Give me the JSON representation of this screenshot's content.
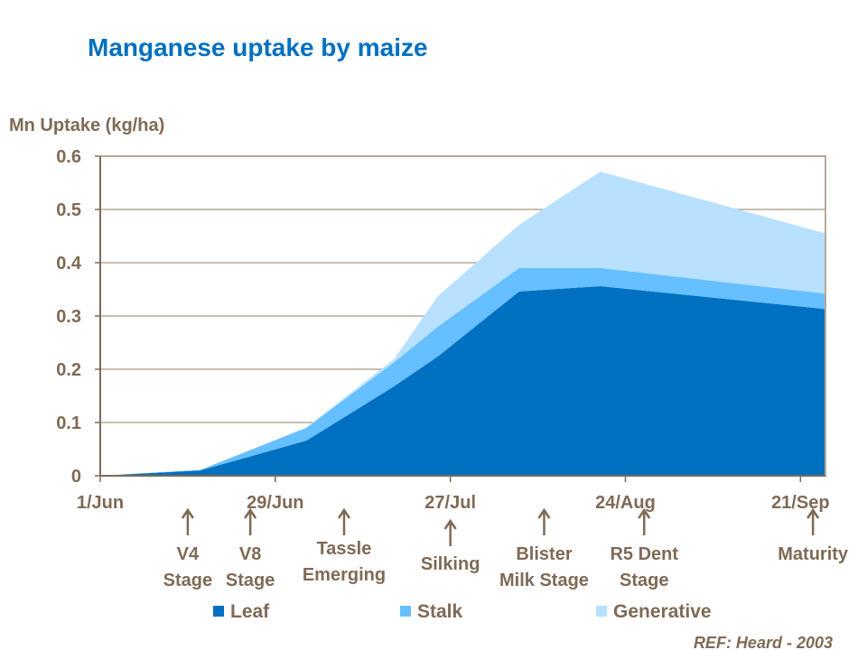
{
  "chart_data": {
    "type": "area",
    "stacked": true,
    "title": "Manganese uptake by maize",
    "ylabel": "Mn Uptake (kg/ha)",
    "xlabel": "",
    "ylim": [
      0,
      0.6
    ],
    "yticks": [
      "0",
      "0.1",
      "0.2",
      "0.3",
      "0.4",
      "0.5",
      "0.6"
    ],
    "xlim": [
      "2003-06-01",
      "2003-09-25"
    ],
    "xticks": [
      {
        "date": "2003-06-01",
        "label": "1/Jun"
      },
      {
        "date": "2003-06-29",
        "label": "29/Jun"
      },
      {
        "date": "2003-07-27",
        "label": "27/Jul"
      },
      {
        "date": "2003-08-24",
        "label": "24/Aug"
      },
      {
        "date": "2003-09-21",
        "label": "21/Sep"
      }
    ],
    "grid": "horizontal",
    "x": [
      "2003-06-01",
      "2003-06-17",
      "2003-07-04",
      "2003-07-18",
      "2003-07-25",
      "2003-08-07",
      "2003-08-20",
      "2003-09-25"
    ],
    "series": [
      {
        "name": "Leaf",
        "color": "#0070C0",
        "values": [
          0,
          0.01,
          0.066,
          0.168,
          0.224,
          0.346,
          0.356,
          0.313
        ]
      },
      {
        "name": "Stalk",
        "color": "#66BFFF",
        "values": [
          0,
          0.001,
          0.024,
          0.045,
          0.056,
          0.044,
          0.034,
          0.029
        ]
      },
      {
        "name": "Generative",
        "color": "#B8E0FF",
        "values": [
          0,
          0.0,
          0.001,
          0.006,
          0.057,
          0.081,
          0.181,
          0.113
        ]
      }
    ],
    "legend_placement": "bottom",
    "annotations": [
      {
        "date": "2003-06-15",
        "lines": [
          "V4",
          "Stage"
        ]
      },
      {
        "date": "2003-06-25",
        "lines": [
          "V8",
          "Stage"
        ]
      },
      {
        "date": "2003-07-10",
        "lines": [
          "Tassle",
          "Emerging"
        ]
      },
      {
        "date": "2003-07-27",
        "lines": [
          "Silking"
        ]
      },
      {
        "date": "2003-08-11",
        "lines": [
          "Blister",
          "Milk Stage"
        ]
      },
      {
        "date": "2003-08-27",
        "lines": [
          "R5 Dent",
          "Stage"
        ]
      },
      {
        "date": "2003-09-23",
        "lines": [
          "Maturity"
        ]
      }
    ],
    "source_note": "REF:  Heard - 2003"
  },
  "colors": {
    "title": "#0070C0",
    "text": "#7F6A55",
    "axis": "#A89C8C"
  }
}
